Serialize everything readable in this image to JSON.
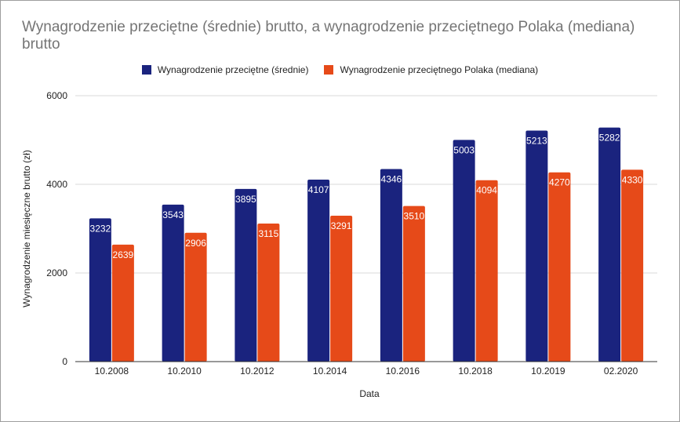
{
  "title": "Wynagrodzenie przeciętne (średnie) brutto, a wynagrodzenie przeciętnego Polaka (mediana) brutto",
  "legend_position": "top",
  "colors": {
    "srednie": "#1a237e",
    "mediana": "#e64a19",
    "grid": "#d9d9d9",
    "axis": "#333333"
  },
  "chart_data": {
    "type": "bar",
    "title": "Wynagrodzenie przeciętne (średnie) brutto, a wynagrodzenie przeciętnego Polaka (mediana) brutto",
    "xlabel": "Data",
    "ylabel": "Wynagrodzenie miesięczne brutto (zł)",
    "ylim": [
      0,
      6000
    ],
    "yticks": [
      0,
      2000,
      4000,
      6000
    ],
    "grid": true,
    "legend": "top",
    "categories": [
      "10.2008",
      "10.2010",
      "10.2012",
      "10.2014",
      "10.2016",
      "10.2018",
      "10.2019",
      "02.2020"
    ],
    "series": [
      {
        "name": "Wynagrodzenie przeciętne (średnie)",
        "color": "#1a237e",
        "values": [
          3232,
          3543,
          3895,
          4107,
          4346,
          5003,
          5213,
          5282
        ]
      },
      {
        "name": "Wynagrodzenie przeciętnego Polaka (mediana)",
        "color": "#e64a19",
        "values": [
          2639,
          2906,
          3115,
          3291,
          3510,
          4094,
          4270,
          4330
        ]
      }
    ]
  }
}
